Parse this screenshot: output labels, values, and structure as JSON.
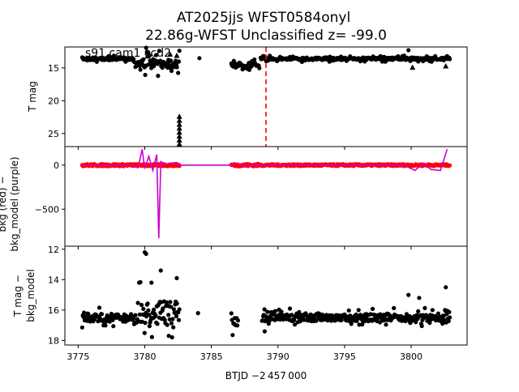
{
  "figure": {
    "title_line1": "AT2025jjs  WFST0584onyl",
    "title_line2": "22.86g-WFST Unclassified z= -99.0",
    "annotation": "s91 cam1 ccd2",
    "xlabel": "BTJD −2 457 000",
    "xticks": [
      "3775",
      "3780",
      "3785",
      "3790",
      "3795",
      "3800"
    ]
  },
  "chart_data": [
    {
      "type": "scatter",
      "panel": "top",
      "ylabel": "T mag",
      "yticks": [
        "15",
        "20",
        "25"
      ],
      "ylim": [
        27.0,
        11.8
      ],
      "xlim": [
        3774.0,
        3804.2
      ],
      "vline": {
        "x": 3789.1,
        "color": "#ff0000",
        "style": "dashed"
      },
      "segments": [
        {
          "x0": 3775.3,
          "x1": 3779.2,
          "y": 13.6,
          "spread": 0.35,
          "color": "#000000"
        },
        {
          "x0": 3779.3,
          "x1": 3782.6,
          "y": 14.3,
          "spread": 1.2,
          "color": "#000000"
        },
        {
          "x0": 3786.5,
          "x1": 3788.6,
          "y": 14.5,
          "spread": 0.55,
          "color": "#000000"
        },
        {
          "x0": 3788.7,
          "x1": 3802.9,
          "y": 13.6,
          "spread": 0.3,
          "color": "#000000"
        }
      ],
      "upper_limits": [
        {
          "x": 3782.6,
          "y": 23.0
        },
        {
          "x": 3782.6,
          "y": 23.6
        },
        {
          "x": 3782.6,
          "y": 24.2
        },
        {
          "x": 3782.6,
          "y": 24.8
        },
        {
          "x": 3782.6,
          "y": 25.4
        },
        {
          "x": 3782.6,
          "y": 26.0
        },
        {
          "x": 3782.6,
          "y": 26.6
        },
        {
          "x": 3782.6,
          "y": 22.4
        },
        {
          "x": 3780.2,
          "y": 13.2
        },
        {
          "x": 3781.9,
          "y": 12.9
        },
        {
          "x": 3782.4,
          "y": 13.1
        },
        {
          "x": 3800.1,
          "y": 14.9
        },
        {
          "x": 3802.6,
          "y": 14.7
        }
      ],
      "outliers": [
        {
          "x": 3784.1,
          "y": 13.5
        },
        {
          "x": 3780.1,
          "y": 11.8
        },
        {
          "x": 3799.8,
          "y": 12.3
        },
        {
          "x": 3802.7,
          "y": 13.2
        }
      ]
    },
    {
      "type": "line",
      "panel": "middle",
      "ylabel_line1": "bkg (red) −",
      "ylabel_line2": "bkg_model (purple)",
      "yticks": [
        "0",
        "−500"
      ],
      "ytick_values": [
        0,
        -500
      ],
      "ylim": [
        -920,
        210
      ],
      "xlim": [
        3774.0,
        3804.2
      ],
      "series": [
        {
          "color": "#ff0000",
          "kind": "points",
          "segments": [
            {
              "x0": 3775.3,
              "x1": 3782.6,
              "y": 0,
              "spread": 12
            },
            {
              "x0": 3786.5,
              "x1": 3788.6,
              "y": 0,
              "spread": 14
            },
            {
              "x0": 3788.7,
              "x1": 3802.9,
              "y": 0,
              "spread": 10
            }
          ]
        },
        {
          "color": "#cc00cc",
          "kind": "line",
          "points": [
            [
              3775.3,
              -5
            ],
            [
              3779.0,
              -5
            ],
            [
              3779.5,
              -30
            ],
            [
              3779.8,
              180
            ],
            [
              3780.0,
              -40
            ],
            [
              3780.3,
              100
            ],
            [
              3780.6,
              -60
            ],
            [
              3780.9,
              120
            ],
            [
              3781.05,
              -830
            ],
            [
              3781.2,
              40
            ],
            [
              3781.6,
              10
            ],
            [
              3782.0,
              20
            ],
            [
              3782.4,
              30
            ],
            [
              3782.6,
              0
            ],
            [
              3786.5,
              0
            ],
            [
              3787.0,
              20
            ],
            [
              3787.6,
              -20
            ],
            [
              3788.2,
              10
            ],
            [
              3788.6,
              0
            ],
            [
              3789.0,
              -10
            ],
            [
              3790.0,
              5
            ],
            [
              3795.0,
              0
            ],
            [
              3799.5,
              -5
            ],
            [
              3800.3,
              -60
            ],
            [
              3800.9,
              20
            ],
            [
              3801.5,
              -50
            ],
            [
              3802.2,
              -60
            ],
            [
              3802.7,
              180
            ]
          ]
        }
      ]
    },
    {
      "type": "scatter",
      "panel": "bottom",
      "ylabel_line1": "T mag −",
      "ylabel_line2": "bkg_model",
      "yticks": [
        "12",
        "14",
        "16",
        "18"
      ],
      "ytick_values": [
        12,
        14,
        16,
        18
      ],
      "ylim": [
        18.3,
        11.8
      ],
      "xlim": [
        3774.0,
        3804.2
      ],
      "segments": [
        {
          "x0": 3775.3,
          "x1": 3779.2,
          "y": 16.5,
          "spread": 0.45,
          "color": "#000000"
        },
        {
          "x0": 3779.3,
          "x1": 3782.6,
          "y": 16.2,
          "spread": 1.3,
          "color": "#000000"
        },
        {
          "x0": 3786.5,
          "x1": 3787.0,
          "y": 16.8,
          "spread": 0.55,
          "color": "#000000"
        },
        {
          "x0": 3788.8,
          "x1": 3802.9,
          "y": 16.5,
          "spread": 0.4,
          "color": "#000000"
        }
      ],
      "outliers": [
        {
          "x": 3780.0,
          "y": 12.2
        },
        {
          "x": 3780.1,
          "y": 12.3
        },
        {
          "x": 3780.5,
          "y": 14.2
        },
        {
          "x": 3781.2,
          "y": 13.4
        },
        {
          "x": 3782.4,
          "y": 13.9
        },
        {
          "x": 3784.0,
          "y": 16.2
        },
        {
          "x": 3799.8,
          "y": 15.0
        },
        {
          "x": 3800.6,
          "y": 15.2
        },
        {
          "x": 3802.6,
          "y": 14.5
        },
        {
          "x": 3801.6,
          "y": 16.0
        },
        {
          "x": 3789.0,
          "y": 17.4
        },
        {
          "x": 3781.8,
          "y": 17.7
        }
      ]
    }
  ]
}
